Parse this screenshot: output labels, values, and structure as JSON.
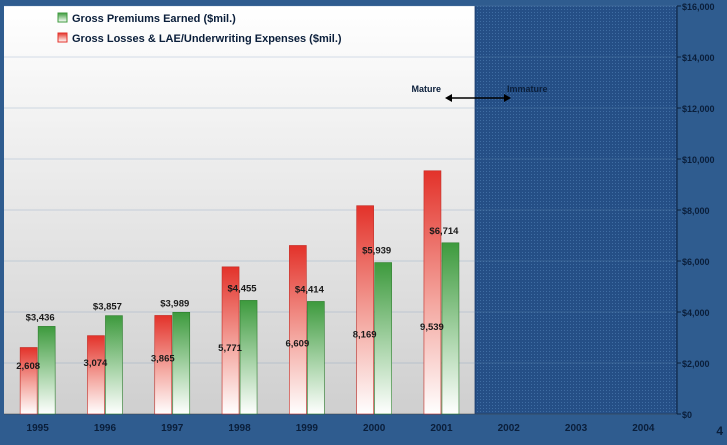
{
  "page_number": "4",
  "colors": {
    "premiums": "#3d9a3d",
    "losses": "#e3322a",
    "plot_bg_top": "#ffffff",
    "plot_bg_bottom": "#d2d2d2",
    "immature_bg": "#254f86",
    "frame": "#2f5c8f"
  },
  "annotation": {
    "mature": "Mature",
    "immature": "Immature"
  },
  "chart_data": {
    "type": "bar",
    "categories": [
      "1995",
      "1996",
      "1997",
      "1998",
      "1999",
      "2000",
      "2001",
      "2002",
      "2003",
      "2004"
    ],
    "series": [
      {
        "name": "Gross Losses & LAE/Underwriting Expenses ($mil.)",
        "color": "#e3322a",
        "values": [
          2608,
          3074,
          3865,
          5771,
          6609,
          8169,
          9539,
          null,
          null,
          null
        ],
        "labels": [
          "2,608",
          "3,074",
          "3,865",
          "5,771",
          "6,609",
          "8,169",
          "9,539",
          "",
          "",
          ""
        ]
      },
      {
        "name": "Gross Premiums Earned ($mil.)",
        "color": "#3d9a3d",
        "values": [
          3436,
          3857,
          3989,
          4455,
          4414,
          5939,
          6714,
          null,
          null,
          null
        ],
        "labels": [
          "$3,436",
          "$3,857",
          "$3,989",
          "$4,455",
          "$4,414",
          "$5,939",
          "$6,714",
          "",
          "",
          ""
        ]
      }
    ],
    "legend_order": [
      "Gross Premiums Earned ($mil.)",
      "Gross Losses & LAE/Underwriting Expenses ($mil.)"
    ],
    "legend_position": "top-left",
    "ylim": [
      0,
      16000
    ],
    "y_ticks": [
      0,
      2000,
      4000,
      6000,
      8000,
      10000,
      12000,
      14000,
      16000
    ],
    "y_tick_labels": [
      "$0",
      "$2,000",
      "$4,000",
      "$6,000",
      "$8,000",
      "$10,000",
      "$12,000",
      "$14,000",
      "$16,000"
    ],
    "y_axis_side": "right",
    "grid": true,
    "immature_from": "2002",
    "xlabel": "",
    "ylabel": "",
    "title": ""
  }
}
